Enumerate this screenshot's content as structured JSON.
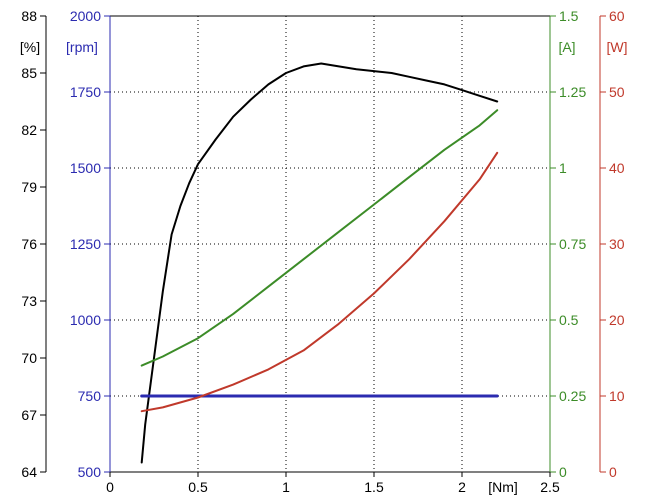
{
  "chart_data": {
    "type": "line",
    "grid": true,
    "x": {
      "unit_label": "[Nm]",
      "range": [
        0,
        2.5
      ],
      "ticks": [
        0,
        0.5,
        1,
        1.5,
        2,
        2.5
      ],
      "tick_labels": [
        "0",
        "0.5",
        "1",
        "1.5",
        "2",
        "2.5"
      ]
    },
    "y_axes": [
      {
        "id": "efficiency",
        "unit_label": "[%]",
        "side": "left-outer",
        "color": "#000000",
        "range": [
          64,
          88
        ],
        "ticks": [
          64,
          67,
          70,
          73,
          76,
          79,
          82,
          85,
          88
        ],
        "tick_labels": [
          "64",
          "67",
          "70",
          "73",
          "76",
          "79",
          "82",
          "85",
          "88"
        ]
      },
      {
        "id": "speed",
        "unit_label": "[rpm]",
        "side": "left-inner",
        "color": "#2b2bb0",
        "range": [
          500,
          2000
        ],
        "ticks": [
          500,
          750,
          1000,
          1250,
          1500,
          1750,
          2000
        ],
        "tick_labels": [
          "500",
          "750",
          "1000",
          "1250",
          "1500",
          "1750",
          "2000"
        ]
      },
      {
        "id": "current",
        "unit_label": "[A]",
        "side": "right-inner",
        "color": "#3c8c28",
        "range": [
          0,
          1.5
        ],
        "ticks": [
          0,
          0.25,
          0.5,
          0.75,
          1,
          1.25,
          1.5
        ],
        "tick_labels": [
          "0",
          "0.25",
          "0.5",
          "0.75",
          "1",
          "1.25",
          "1.5"
        ]
      },
      {
        "id": "power",
        "unit_label": "[W]",
        "side": "right-outer",
        "color": "#c0392b",
        "range": [
          0,
          60
        ],
        "ticks": [
          0,
          10,
          20,
          30,
          40,
          50,
          60
        ],
        "tick_labels": [
          "0",
          "10",
          "20",
          "30",
          "40",
          "50",
          "60"
        ]
      }
    ],
    "series": [
      {
        "axis": "efficiency",
        "color": "#000000",
        "x": [
          0.18,
          0.2,
          0.25,
          0.3,
          0.35,
          0.4,
          0.45,
          0.5,
          0.6,
          0.7,
          0.8,
          0.9,
          1.0,
          1.1,
          1.2,
          1.3,
          1.4,
          1.5,
          1.6,
          1.7,
          1.8,
          1.9,
          2.0,
          2.1,
          2.2
        ],
        "y": [
          64.5,
          66.5,
          70.0,
          73.5,
          76.5,
          78.0,
          79.2,
          80.2,
          81.5,
          82.7,
          83.6,
          84.4,
          85.0,
          85.35,
          85.5,
          85.35,
          85.2,
          85.1,
          85.0,
          84.8,
          84.6,
          84.4,
          84.1,
          83.8,
          83.5
        ]
      },
      {
        "axis": "speed",
        "color": "#2b2bb0",
        "x": [
          0.18,
          2.2
        ],
        "y": [
          750,
          750
        ]
      },
      {
        "axis": "current",
        "color": "#3c8c28",
        "x": [
          0.18,
          0.3,
          0.5,
          0.7,
          0.9,
          1.1,
          1.3,
          1.5,
          1.7,
          1.9,
          2.1,
          2.2
        ],
        "y": [
          0.35,
          0.38,
          0.44,
          0.52,
          0.61,
          0.7,
          0.79,
          0.88,
          0.97,
          1.06,
          1.14,
          1.19
        ]
      },
      {
        "axis": "power",
        "color": "#c0392b",
        "x": [
          0.18,
          0.3,
          0.5,
          0.7,
          0.9,
          1.1,
          1.3,
          1.5,
          1.7,
          1.9,
          2.1,
          2.2
        ],
        "y": [
          8.0,
          8.5,
          9.8,
          11.5,
          13.5,
          16.0,
          19.5,
          23.5,
          28.0,
          33.0,
          38.5,
          42.0
        ]
      }
    ]
  }
}
